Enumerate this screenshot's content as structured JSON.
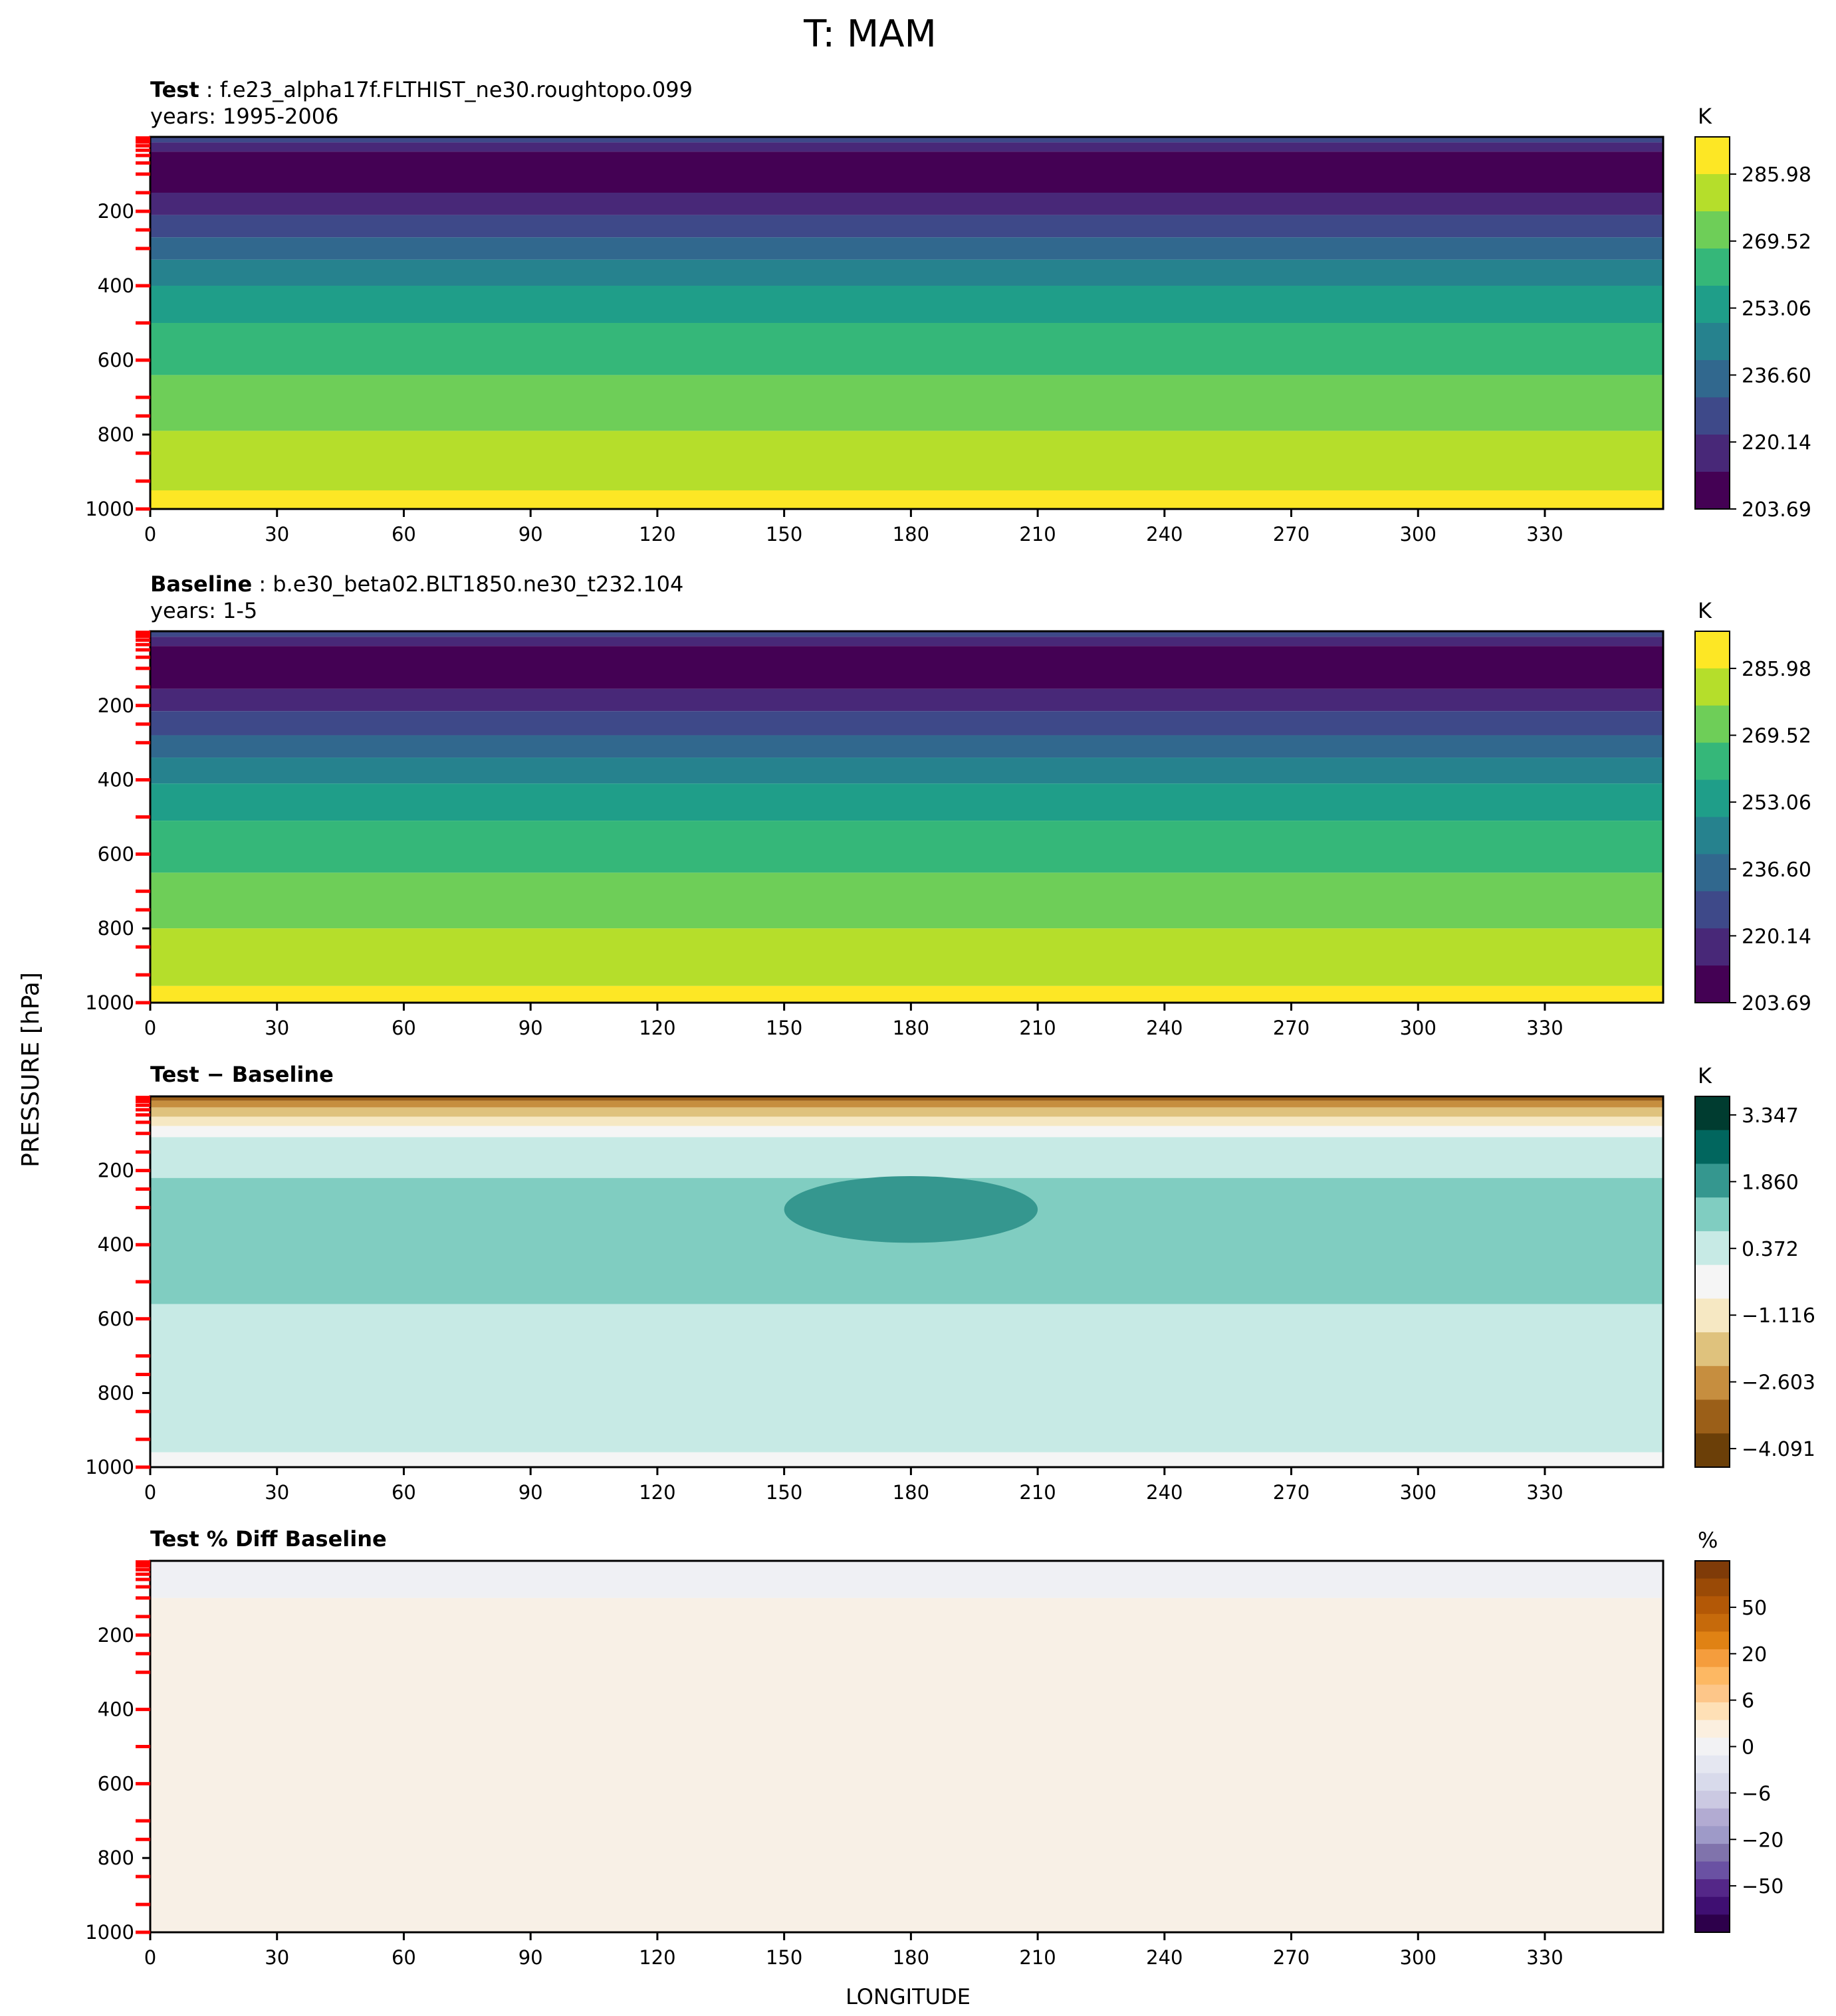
{
  "figure": {
    "title": "T: MAM",
    "ylabel": "PRESSURE [hPa]",
    "xlabel": "LONGITUDE"
  },
  "chart_data": [
    {
      "type": "heatmap",
      "panel": "test",
      "label_bold": "Test",
      "label_text": ": f.e23_alpha17f.FLTHIST_ne30.roughtopo.099",
      "years": "years: 1995-2006",
      "units": "K",
      "x_ticks": [
        0,
        30,
        60,
        90,
        120,
        150,
        180,
        210,
        240,
        270,
        300,
        330
      ],
      "x_range": [
        0,
        358
      ],
      "y_ticks": [
        200,
        400,
        600,
        800,
        1000
      ],
      "y_range": [
        1000,
        0
      ],
      "red_level_ticks": [
        3,
        7,
        14,
        24,
        36,
        50,
        70,
        100,
        150,
        200,
        250,
        300,
        400,
        500,
        600,
        700,
        750,
        850,
        925,
        1000
      ],
      "colorbar": {
        "ticks": [
          "285.98",
          "269.52",
          "253.06",
          "236.60",
          "220.14",
          "203.69"
        ],
        "colors": [
          "#440154",
          "#482878",
          "#3e4989",
          "#31688e",
          "#26828e",
          "#1f9e89",
          "#35b779",
          "#6ece58",
          "#b5de2b",
          "#fde725"
        ]
      },
      "bands": [
        {
          "p": [
            0,
            15
          ],
          "color": "#3e4989"
        },
        {
          "p": [
            15,
            40
          ],
          "color": "#482878"
        },
        {
          "p": [
            40,
            150
          ],
          "color": "#440154"
        },
        {
          "p": [
            150,
            210
          ],
          "color": "#482878"
        },
        {
          "p": [
            210,
            270
          ],
          "color": "#3e4989"
        },
        {
          "p": [
            270,
            330
          ],
          "color": "#31688e"
        },
        {
          "p": [
            330,
            400
          ],
          "color": "#26828e"
        },
        {
          "p": [
            400,
            500
          ],
          "color": "#1f9e89"
        },
        {
          "p": [
            500,
            640
          ],
          "color": "#35b779"
        },
        {
          "p": [
            640,
            790
          ],
          "color": "#6ece58"
        },
        {
          "p": [
            790,
            950
          ],
          "color": "#b5de2b"
        },
        {
          "p": [
            950,
            1000
          ],
          "color": "#fde725"
        }
      ]
    },
    {
      "type": "heatmap",
      "panel": "baseline",
      "label_bold": "Baseline",
      "label_text": ": b.e30_beta02.BLT1850.ne30_t232.104",
      "years": "years: 1-5",
      "units": "K",
      "x_ticks": [
        0,
        30,
        60,
        90,
        120,
        150,
        180,
        210,
        240,
        270,
        300,
        330
      ],
      "x_range": [
        0,
        358
      ],
      "y_ticks": [
        200,
        400,
        600,
        800,
        1000
      ],
      "y_range": [
        1000,
        0
      ],
      "red_level_ticks": [
        3,
        7,
        14,
        24,
        36,
        50,
        70,
        100,
        150,
        200,
        250,
        300,
        400,
        500,
        600,
        700,
        750,
        850,
        925,
        1000
      ],
      "colorbar": {
        "ticks": [
          "285.98",
          "269.52",
          "253.06",
          "236.60",
          "220.14",
          "203.69"
        ],
        "colors": [
          "#440154",
          "#482878",
          "#3e4989",
          "#31688e",
          "#26828e",
          "#1f9e89",
          "#35b779",
          "#6ece58",
          "#b5de2b",
          "#fde725"
        ]
      },
      "bands": [
        {
          "p": [
            0,
            15
          ],
          "color": "#3e4989"
        },
        {
          "p": [
            15,
            40
          ],
          "color": "#482878"
        },
        {
          "p": [
            40,
            155
          ],
          "color": "#440154"
        },
        {
          "p": [
            155,
            215
          ],
          "color": "#482878"
        },
        {
          "p": [
            215,
            280
          ],
          "color": "#3e4989"
        },
        {
          "p": [
            280,
            340
          ],
          "color": "#31688e"
        },
        {
          "p": [
            340,
            410
          ],
          "color": "#26828e"
        },
        {
          "p": [
            410,
            510
          ],
          "color": "#1f9e89"
        },
        {
          "p": [
            510,
            650
          ],
          "color": "#35b779"
        },
        {
          "p": [
            650,
            800
          ],
          "color": "#6ece58"
        },
        {
          "p": [
            800,
            955
          ],
          "color": "#b5de2b"
        },
        {
          "p": [
            955,
            1000
          ],
          "color": "#fde725"
        }
      ]
    },
    {
      "type": "heatmap",
      "panel": "diff",
      "label_bold": "Test − Baseline",
      "label_text": "",
      "years": "",
      "units": "K",
      "x_ticks": [
        0,
        30,
        60,
        90,
        120,
        150,
        180,
        210,
        240,
        270,
        300,
        330
      ],
      "x_range": [
        0,
        358
      ],
      "y_ticks": [
        200,
        400,
        600,
        800,
        1000
      ],
      "y_range": [
        1000,
        0
      ],
      "red_level_ticks": [
        3,
        7,
        14,
        24,
        36,
        50,
        70,
        100,
        150,
        200,
        250,
        300,
        400,
        500,
        600,
        700,
        750,
        850,
        925,
        1000
      ],
      "colorbar": {
        "ticks": [
          "3.347",
          "1.860",
          "0.372",
          "−1.116",
          "−2.603",
          "−4.091"
        ],
        "colors": [
          "#6b3f08",
          "#9b5f18",
          "#c68e3f",
          "#dfc27d",
          "#f6e8c3",
          "#f5f5f5",
          "#c7eae5",
          "#80cdc1",
          "#35978f",
          "#01665e",
          "#003c30"
        ]
      },
      "bands": [
        {
          "p": [
            0,
            12
          ],
          "color": "#9b5f18"
        },
        {
          "p": [
            12,
            30
          ],
          "color": "#c68e3f"
        },
        {
          "p": [
            30,
            55
          ],
          "color": "#dfc27d"
        },
        {
          "p": [
            55,
            80
          ],
          "color": "#f6e8c3"
        },
        {
          "p": [
            80,
            110
          ],
          "color": "#f5f5f5"
        },
        {
          "p": [
            110,
            220
          ],
          "color": "#c7eae5"
        },
        {
          "p": [
            220,
            560
          ],
          "color": "#80cdc1"
        },
        {
          "p": [
            560,
            960
          ],
          "color": "#c7eae5"
        },
        {
          "p": [
            960,
            1000
          ],
          "color": "#f5f5f5"
        }
      ],
      "blob": {
        "lon": [
          150,
          210
        ],
        "p": [
          215,
          395
        ],
        "color": "#35978f"
      }
    },
    {
      "type": "heatmap",
      "panel": "pctdiff",
      "label_bold": "Test % Diff Baseline",
      "label_text": "",
      "years": "",
      "units": "%",
      "x_ticks": [
        0,
        30,
        60,
        90,
        120,
        150,
        180,
        210,
        240,
        270,
        300,
        330
      ],
      "x_range": [
        0,
        358
      ],
      "y_ticks": [
        200,
        400,
        600,
        800,
        1000
      ],
      "y_range": [
        1000,
        0
      ],
      "red_level_ticks": [
        3,
        7,
        14,
        24,
        36,
        50,
        70,
        100,
        150,
        200,
        250,
        300,
        400,
        500,
        600,
        700,
        750,
        850,
        925,
        1000
      ],
      "colorbar": {
        "ticks": [
          "50",
          "20",
          "6",
          "0",
          "−6",
          "−20",
          "−50"
        ],
        "colors": [
          "#2d004b",
          "#3f0f72",
          "#542788",
          "#6a51a3",
          "#8073ac",
          "#9e9ac8",
          "#b2abd2",
          "#cbc9e2",
          "#d8daeb",
          "#e5e7f1",
          "#f2f2f4",
          "#fbefdf",
          "#fee0b6",
          "#fdc689",
          "#fdb863",
          "#f59d3d",
          "#e08214",
          "#c66a0b",
          "#b35806",
          "#9a4a06",
          "#7f3b08"
        ]
      },
      "bands": [
        {
          "p": [
            0,
            100
          ],
          "color": "#eff0f4"
        },
        {
          "p": [
            100,
            1000
          ],
          "color": "#f8f0e6"
        }
      ]
    }
  ]
}
